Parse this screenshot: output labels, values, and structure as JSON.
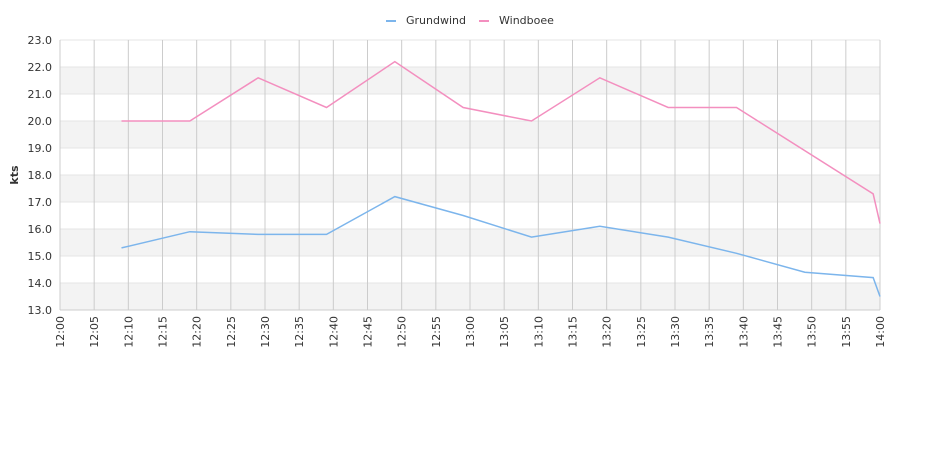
{
  "chart_data": {
    "type": "line",
    "title": "",
    "xlabel": "",
    "ylabel": "kts",
    "ylim": [
      13.0,
      23.0
    ],
    "yticks": [
      "13.0",
      "14.0",
      "15.0",
      "16.0",
      "17.0",
      "18.0",
      "19.0",
      "20.0",
      "21.0",
      "22.0",
      "23.0"
    ],
    "xrange": [
      "12:00",
      "14:00"
    ],
    "xticks": [
      "12:00",
      "12:05",
      "12:10",
      "12:15",
      "12:20",
      "12:25",
      "12:30",
      "12:35",
      "12:40",
      "12:45",
      "12:50",
      "12:55",
      "13:00",
      "13:05",
      "13:10",
      "13:15",
      "13:20",
      "13:25",
      "13:30",
      "13:35",
      "13:40",
      "13:45",
      "13:50",
      "13:55",
      "14:00"
    ],
    "grid": true,
    "legend": "top-center",
    "series": [
      {
        "name": "Grundwind",
        "color": "#7cb5ec",
        "x": [
          "12:09",
          "12:19",
          "12:29",
          "12:39",
          "12:49",
          "12:59",
          "13:09",
          "13:19",
          "13:29",
          "13:39",
          "13:49",
          "13:59",
          "14:00"
        ],
        "values": [
          15.3,
          15.9,
          15.8,
          15.8,
          17.2,
          16.5,
          15.7,
          16.1,
          15.7,
          15.1,
          14.4,
          14.2,
          13.5
        ]
      },
      {
        "name": "Windboee",
        "color": "#f38fbf",
        "x": [
          "12:09",
          "12:19",
          "12:29",
          "12:39",
          "12:49",
          "12:59",
          "13:09",
          "13:19",
          "13:29",
          "13:39",
          "13:59",
          "14:00"
        ],
        "values": [
          20.0,
          20.0,
          21.6,
          20.5,
          22.2,
          20.5,
          20.0,
          21.6,
          20.5,
          20.5,
          17.3,
          16.2
        ]
      }
    ]
  }
}
